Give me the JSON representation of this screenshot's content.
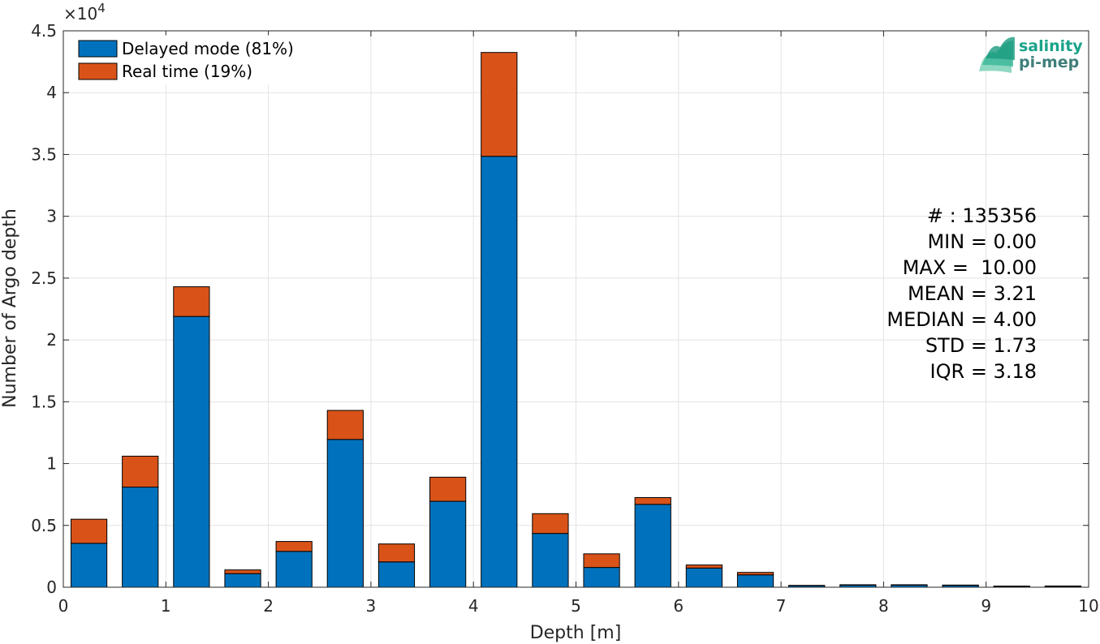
{
  "chart_data": {
    "type": "bar",
    "stacked": true,
    "xlabel": "Depth [m]",
    "ylabel": "Number of Argo depth",
    "y_exponent_label": "×10",
    "y_exponent_power": "4",
    "xlim": [
      0,
      10
    ],
    "ylim": [
      0,
      45000
    ],
    "xticks": [
      "0",
      "1",
      "2",
      "3",
      "4",
      "5",
      "6",
      "7",
      "8",
      "9",
      "10"
    ],
    "yticks": [
      "0",
      "0.5",
      "1",
      "1.5",
      "2",
      "2.5",
      "3",
      "3.5",
      "4",
      "4.5"
    ],
    "grid": true,
    "legend_position": "top-left",
    "bin_centers": [
      0.25,
      0.75,
      1.25,
      1.75,
      2.25,
      2.75,
      3.25,
      3.75,
      4.25,
      4.75,
      5.25,
      5.75,
      6.25,
      6.75,
      7.25,
      7.75,
      8.25,
      8.75,
      9.25,
      9.75
    ],
    "bar_width": 0.35,
    "series": [
      {
        "name": "Delayed mode (81%)",
        "color": "#0072BD",
        "values": [
          3550,
          8100,
          21900,
          1100,
          2900,
          11950,
          2050,
          6950,
          34850,
          4350,
          1600,
          6700,
          1550,
          1000,
          130,
          170,
          180,
          160,
          80,
          90
        ]
      },
      {
        "name": "Real time (19%)",
        "color": "#D95319",
        "values": [
          1950,
          2500,
          2400,
          300,
          800,
          2350,
          1450,
          1950,
          8400,
          1600,
          1100,
          550,
          250,
          200,
          20,
          30,
          20,
          15,
          10,
          10
        ]
      }
    ],
    "stats_lines": [
      "# : 135356",
      "MIN = 0.00",
      "MAX =  10.00",
      "MEAN = 3.21",
      "MEDIAN = 4.00",
      "STD = 1.73",
      "IQR = 3.18"
    ]
  },
  "logo": {
    "line1": "salinity",
    "line2": "pi-mep",
    "color1": "#1aa38a",
    "color2": "#3f7f7a"
  }
}
